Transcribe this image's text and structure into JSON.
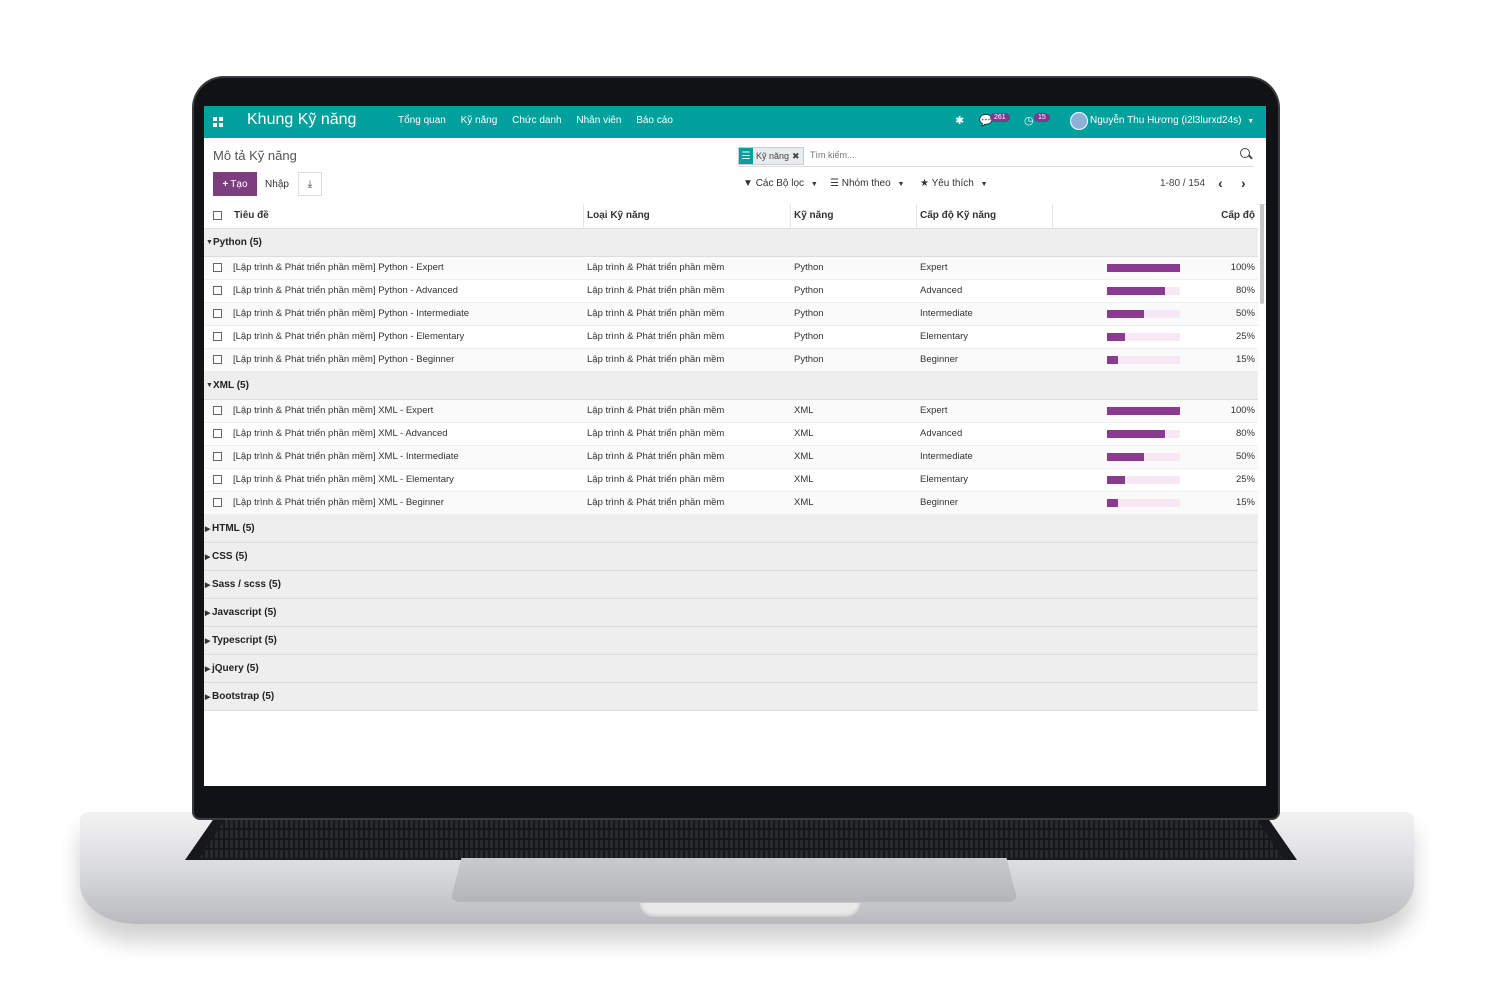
{
  "navbar": {
    "app_title": "Khung Kỹ năng",
    "menu": [
      "Tổng quan",
      "Kỹ năng",
      "Chức danh",
      "Nhân viên",
      "Báo cáo"
    ],
    "messages_count": "261",
    "activities_count": "15",
    "user_name": "Nguyễn Thu Hương (i2l3lurxd24s)"
  },
  "control_panel": {
    "breadcrumb": "Mô tả Kỹ năng",
    "facet_label": "Kỹ năng",
    "search_placeholder": "Tìm kiếm...",
    "create_label": "Tạo",
    "import_label": "Nhập",
    "filters_label": "Các Bộ lọc",
    "groupby_label": "Nhóm theo",
    "favorites_label": "Yêu thích",
    "pager": "1-80 / 154"
  },
  "table": {
    "headers": {
      "title": "Tiêu đề",
      "skill_type": "Loại Kỹ năng",
      "skill": "Kỹ năng",
      "level": "Cấp độ Kỹ năng",
      "progress": "Cấp độ"
    },
    "groups_open": [
      {
        "label": "Python (5)",
        "rows": [
          {
            "title": "[Lập trình & Phát triển phần mềm] Python - Expert",
            "type": "Lập trình & Phát triển phần mềm",
            "skill": "Python",
            "level": "Expert",
            "pct": "100%",
            "value": 100
          },
          {
            "title": "[Lập trình & Phát triển phần mềm] Python - Advanced",
            "type": "Lập trình & Phát triển phần mềm",
            "skill": "Python",
            "level": "Advanced",
            "pct": "80%",
            "value": 80
          },
          {
            "title": "[Lập trình & Phát triển phần mềm] Python - Intermediate",
            "type": "Lập trình & Phát triển phần mềm",
            "skill": "Python",
            "level": "Intermediate",
            "pct": "50%",
            "value": 50
          },
          {
            "title": "[Lập trình & Phát triển phần mềm] Python - Elementary",
            "type": "Lập trình & Phát triển phần mềm",
            "skill": "Python",
            "level": "Elementary",
            "pct": "25%",
            "value": 25
          },
          {
            "title": "[Lập trình & Phát triển phần mềm] Python - Beginner",
            "type": "Lập trình & Phát triển phần mềm",
            "skill": "Python",
            "level": "Beginner",
            "pct": "15%",
            "value": 15
          }
        ]
      },
      {
        "label": "XML (5)",
        "rows": [
          {
            "title": "[Lập trình & Phát triển phần mềm] XML - Expert",
            "type": "Lập trình & Phát triển phần mềm",
            "skill": "XML",
            "level": "Expert",
            "pct": "100%",
            "value": 100
          },
          {
            "title": "[Lập trình & Phát triển phần mềm] XML - Advanced",
            "type": "Lập trình & Phát triển phần mềm",
            "skill": "XML",
            "level": "Advanced",
            "pct": "80%",
            "value": 80
          },
          {
            "title": "[Lập trình & Phát triển phần mềm] XML - Intermediate",
            "type": "Lập trình & Phát triển phần mềm",
            "skill": "XML",
            "level": "Intermediate",
            "pct": "50%",
            "value": 50
          },
          {
            "title": "[Lập trình & Phát triển phần mềm] XML - Elementary",
            "type": "Lập trình & Phát triển phần mềm",
            "skill": "XML",
            "level": "Elementary",
            "pct": "25%",
            "value": 25
          },
          {
            "title": "[Lập trình & Phát triển phần mềm] XML - Beginner",
            "type": "Lập trình & Phát triển phần mềm",
            "skill": "XML",
            "level": "Beginner",
            "pct": "15%",
            "value": 15
          }
        ]
      }
    ],
    "groups_closed": [
      "HTML (5)",
      "CSS (5)",
      "Sass / scss (5)",
      "Javascript (5)",
      "Typescript (5)",
      "jQuery (5)",
      "Bootstrap (5)"
    ]
  },
  "colors": {
    "navbar": "#00a09d",
    "primary": "#7c3e7e",
    "bar": "#8a3b8f"
  }
}
